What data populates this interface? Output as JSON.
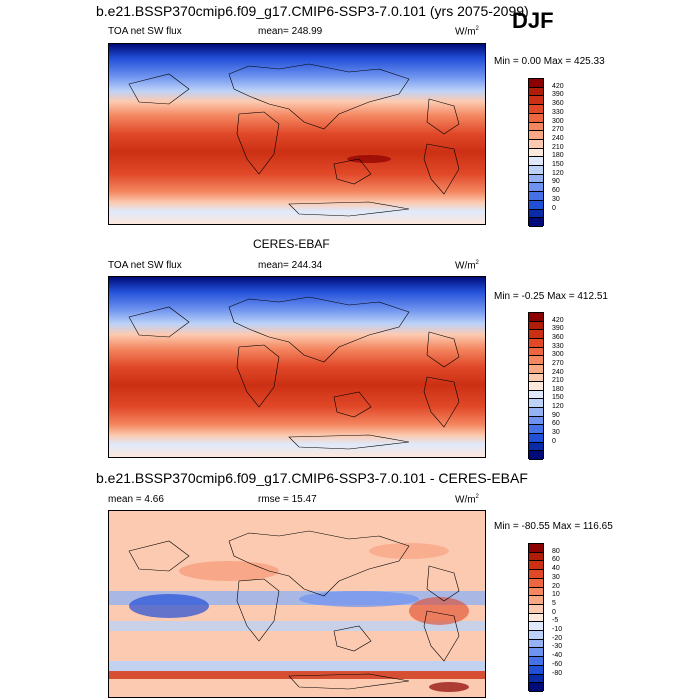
{
  "chart_data": [
    {
      "type": "heatmap",
      "title": "b.e21.BSSP370cmip6.f09_g17.CMIP6-SSP3-7.0.101 (yrs 2075-2099)",
      "season": "DJF",
      "left_label": "TOA net SW flux",
      "mean_label": "mean= 248.99",
      "units": "W/m",
      "units_sup": "2",
      "minmax": "Min =   0.00 Max = 425.33",
      "colorbar": {
        "levels": [
          "420",
          "390",
          "360",
          "330",
          "300",
          "270",
          "240",
          "210",
          "180",
          "150",
          "120",
          "90",
          "60",
          "30",
          "0"
        ],
        "colors": [
          "#8b0000",
          "#b01c08",
          "#cc3014",
          "#e04828",
          "#ee6542",
          "#f48660",
          "#f8a884",
          "#fccab0",
          "#fde8dc",
          "#dfe9fb",
          "#bcd2f8",
          "#94b2f3",
          "#6d92ef",
          "#4670e6",
          "#224fd8",
          "#0a2ba8",
          "#000a78"
        ]
      }
    },
    {
      "type": "heatmap",
      "title": "CERES-EBAF",
      "left_label": "TOA net SW flux",
      "mean_label": "mean= 244.34",
      "units": "W/m",
      "units_sup": "2",
      "minmax": "Min =  -0.25 Max = 412.51",
      "colorbar": {
        "levels": [
          "420",
          "390",
          "360",
          "330",
          "300",
          "270",
          "240",
          "210",
          "180",
          "150",
          "120",
          "90",
          "60",
          "30",
          "0"
        ],
        "colors": [
          "#8b0000",
          "#b01c08",
          "#cc3014",
          "#e04828",
          "#ee6542",
          "#f48660",
          "#f8a884",
          "#fccab0",
          "#fde8dc",
          "#dfe9fb",
          "#bcd2f8",
          "#94b2f3",
          "#6d92ef",
          "#4670e6",
          "#224fd8",
          "#0a2ba8",
          "#000a78"
        ]
      }
    },
    {
      "type": "heatmap",
      "title": "b.e21.BSSP370cmip6.f09_g17.CMIP6-SSP3-7.0.101 - CERES-EBAF",
      "mean_label": "mean =   4.66",
      "rmse_label": "rmse =  15.47",
      "units": "W/m",
      "units_sup": "2",
      "minmax": "Min = -80.55 Max = 116.65",
      "colorbar": {
        "levels": [
          "80",
          "60",
          "40",
          "30",
          "20",
          "10",
          "5",
          "0",
          "-5",
          "-10",
          "-20",
          "-30",
          "-40",
          "-60",
          "-80"
        ],
        "colors": [
          "#8b0000",
          "#b01c08",
          "#cc3014",
          "#e04828",
          "#ee6542",
          "#f48660",
          "#f8a884",
          "#fccab0",
          "#fde8dc",
          "#dfe9fb",
          "#bcd2f8",
          "#94b2f3",
          "#6d92ef",
          "#4670e6",
          "#224fd8",
          "#0a2ba8",
          "#000a78"
        ]
      }
    }
  ]
}
